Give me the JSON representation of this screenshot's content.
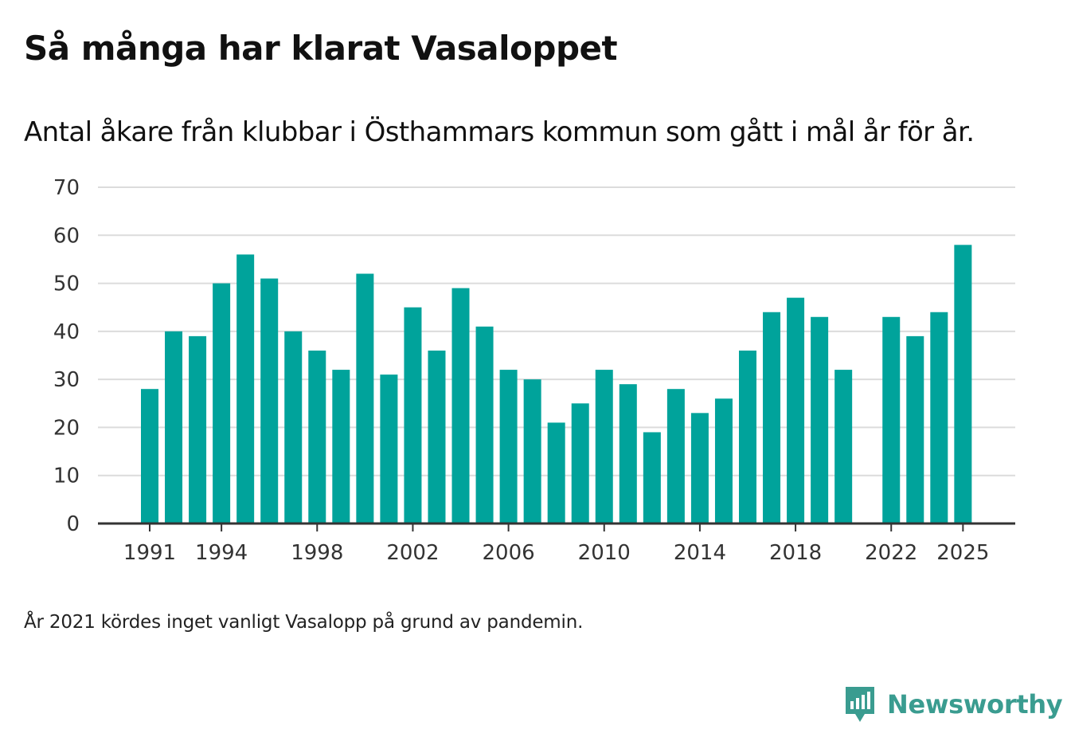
{
  "title": "Så många har klarat Vasaloppet",
  "subtitle": "Antal åkare från klubbar i Östhammars kommun som gått i mål år för år.",
  "note": "År 2021 kördes inget vanligt Vasalopp på grund av pandemin.",
  "brand": {
    "name": "Newsworthy",
    "icon": "newsworthy-logo-icon",
    "color": "#3a9c90"
  },
  "colors": {
    "bar": "#00a39b",
    "grid": "#dcdcdc",
    "axis": "#333333"
  },
  "chart_data": {
    "type": "bar",
    "title": "Så många har klarat Vasaloppet",
    "xlabel": "",
    "ylabel": "",
    "ylim": [
      0,
      70
    ],
    "yticks": [
      0,
      10,
      20,
      30,
      40,
      50,
      60,
      70
    ],
    "xticks": [
      1991,
      1994,
      1998,
      2002,
      2006,
      2010,
      2014,
      2018,
      2022,
      2025
    ],
    "grid": true,
    "categories": [
      1991,
      1992,
      1993,
      1994,
      1995,
      1996,
      1997,
      1998,
      1999,
      2000,
      2001,
      2002,
      2003,
      2004,
      2005,
      2006,
      2007,
      2008,
      2009,
      2010,
      2011,
      2012,
      2013,
      2014,
      2015,
      2016,
      2017,
      2018,
      2019,
      2020,
      2021,
      2022,
      2023,
      2024,
      2025
    ],
    "values": [
      28,
      40,
      39,
      50,
      56,
      51,
      40,
      36,
      32,
      52,
      31,
      45,
      36,
      49,
      41,
      32,
      30,
      21,
      25,
      32,
      29,
      19,
      28,
      23,
      26,
      36,
      44,
      47,
      43,
      32,
      null,
      43,
      39,
      44,
      58
    ]
  }
}
